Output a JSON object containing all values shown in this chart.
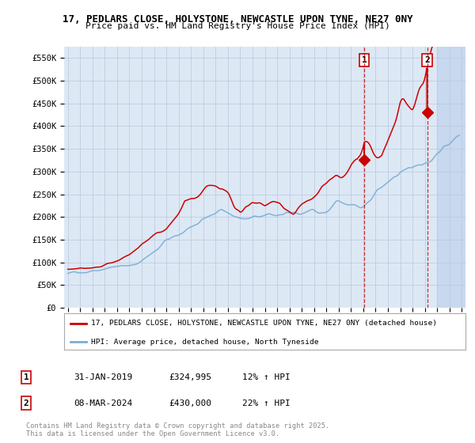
{
  "title1": "17, PEDLARS CLOSE, HOLYSTONE, NEWCASTLE UPON TYNE, NE27 0NY",
  "title2": "Price paid vs. HM Land Registry's House Price Index (HPI)",
  "ylabel_ticks": [
    "£0",
    "£50K",
    "£100K",
    "£150K",
    "£200K",
    "£250K",
    "£300K",
    "£350K",
    "£400K",
    "£450K",
    "£500K",
    "£550K"
  ],
  "ytick_values": [
    0,
    50000,
    100000,
    150000,
    200000,
    250000,
    300000,
    350000,
    400000,
    450000,
    500000,
    550000
  ],
  "ylim": [
    0,
    575000
  ],
  "xlim_start": 1994.7,
  "xlim_end": 2027.3,
  "marker1_x": 2019.083,
  "marker1_y": 324995,
  "marker2_x": 2024.19,
  "marker2_y": 430000,
  "legend_line1": "17, PEDLARS CLOSE, HOLYSTONE, NEWCASTLE UPON TYNE, NE27 0NY (detached house)",
  "legend_line2": "HPI: Average price, detached house, North Tyneside",
  "table_row1": [
    "1",
    "31-JAN-2019",
    "£324,995",
    "12% ↑ HPI"
  ],
  "table_row2": [
    "2",
    "08-MAR-2024",
    "£430,000",
    "22% ↑ HPI"
  ],
  "footer": "Contains HM Land Registry data © Crown copyright and database right 2025.\nThis data is licensed under the Open Government Licence v3.0.",
  "line_color_red": "#cc0000",
  "line_color_blue": "#7aadd4",
  "bg_color": "#dde8f5",
  "grid_color": "#b8c8dc",
  "future_shade_start": 2025.0,
  "future_shade_color": "#c8d8ee"
}
